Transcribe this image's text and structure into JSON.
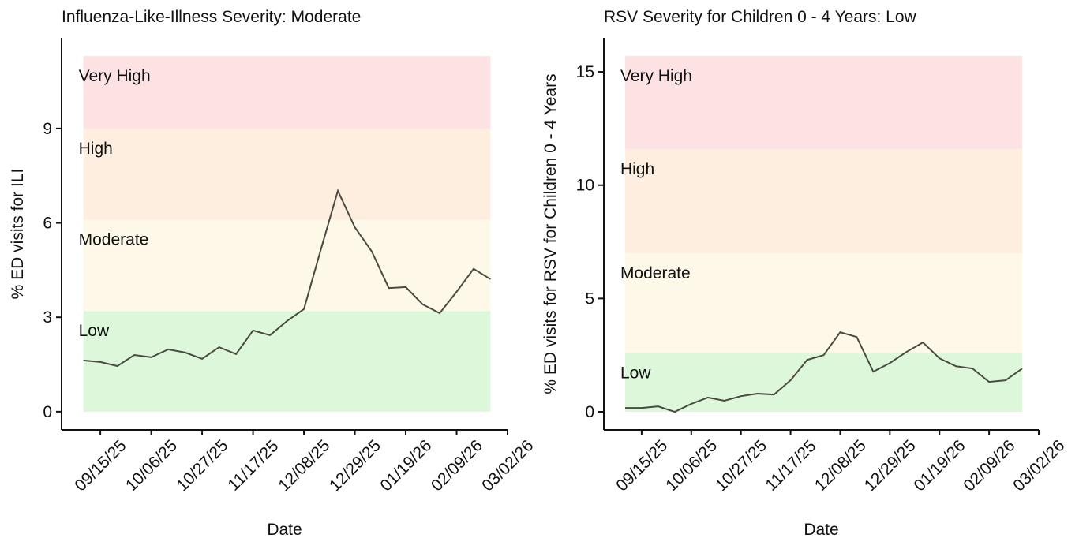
{
  "chart_data": [
    {
      "type": "line",
      "title": "Influenza-Like-Illness Severity: Moderate",
      "x_label": "Date",
      "y_label": "% ED visits for ILI",
      "x": [
        "2025-09-08",
        "2025-09-15",
        "2025-09-22",
        "2025-09-29",
        "2025-10-06",
        "2025-10-13",
        "2025-10-20",
        "2025-10-27",
        "2025-11-03",
        "2025-11-10",
        "2025-11-17",
        "2025-11-24",
        "2025-12-01",
        "2025-12-08",
        "2025-12-15",
        "2025-12-22",
        "2025-12-29",
        "2026-01-05",
        "2026-01-12",
        "2026-01-19",
        "2026-01-26",
        "2026-02-02",
        "2026-02-09",
        "2026-02-16",
        "2026-02-23"
      ],
      "series": [
        {
          "color": "#4a4a40",
          "values": [
            1.63,
            1.58,
            1.45,
            1.8,
            1.73,
            1.98,
            1.88,
            1.68,
            2.05,
            1.83,
            2.58,
            2.43,
            2.88,
            3.26,
            5.16,
            7.02,
            5.86,
            5.09,
            3.93,
            3.96,
            3.41,
            3.13,
            3.81,
            4.54,
            4.21
          ]
        }
      ],
      "bands": [
        {
          "name": "Low",
          "from": 0,
          "to": 3.2,
          "color": "#dcf7da"
        },
        {
          "name": "Moderate",
          "from": 3.2,
          "to": 6.1,
          "color": "#fdf8e8"
        },
        {
          "name": "High",
          "from": 6.1,
          "to": 9,
          "color": "#fdeee0"
        },
        {
          "name": "Very High",
          "from": 9,
          "to": 11.3,
          "color": "#fde2e4"
        }
      ],
      "xlim": [
        "2025-08-30",
        "2026-03-02"
      ],
      "xticks": [
        {
          "value": "2025-09-15",
          "label": "09/15/25"
        },
        {
          "value": "2025-10-06",
          "label": "10/06/25"
        },
        {
          "value": "2025-10-27",
          "label": "10/27/25"
        },
        {
          "value": "2025-11-17",
          "label": "11/17/25"
        },
        {
          "value": "2025-12-08",
          "label": "12/08/25"
        },
        {
          "value": "2025-12-29",
          "label": "12/29/25"
        },
        {
          "value": "2026-01-19",
          "label": "01/19/26"
        },
        {
          "value": "2026-02-09",
          "label": "02/09/26"
        },
        {
          "value": "2026-03-02",
          "label": "03/02/26"
        }
      ],
      "ylim": [
        -0.58,
        11.88
      ],
      "yticks": [
        0,
        3,
        6,
        9
      ]
    },
    {
      "type": "line",
      "title": "RSV Severity for Children 0 - 4 Years: Low",
      "x_label": "Date",
      "y_label": "% ED visits for RSV for Children 0 - 4 Years",
      "x": [
        "2025-09-08",
        "2025-09-15",
        "2025-09-22",
        "2025-09-29",
        "2025-10-06",
        "2025-10-13",
        "2025-10-20",
        "2025-10-27",
        "2025-11-03",
        "2025-11-10",
        "2025-11-17",
        "2025-11-24",
        "2025-12-01",
        "2025-12-08",
        "2025-12-15",
        "2025-12-22",
        "2025-12-29",
        "2026-01-05",
        "2026-01-12",
        "2026-01-19",
        "2026-01-26",
        "2026-02-02",
        "2026-02-09",
        "2026-02-16",
        "2026-02-23"
      ],
      "series": [
        {
          "color": "#4a4a40",
          "values": [
            0.17,
            0.17,
            0.24,
            0.0,
            0.35,
            0.63,
            0.49,
            0.69,
            0.8,
            0.76,
            1.39,
            2.29,
            2.5,
            3.51,
            3.3,
            1.77,
            2.15,
            2.64,
            3.06,
            2.36,
            2.01,
            1.91,
            1.32,
            1.39,
            1.91
          ]
        }
      ],
      "bands": [
        {
          "name": "Low",
          "from": 0,
          "to": 2.6,
          "color": "#dcf7da"
        },
        {
          "name": "Moderate",
          "from": 2.6,
          "to": 7.0,
          "color": "#fdf8e8"
        },
        {
          "name": "High",
          "from": 7.0,
          "to": 11.6,
          "color": "#fdeee0"
        },
        {
          "name": "Very High",
          "from": 11.6,
          "to": 15.7,
          "color": "#fde2e4"
        }
      ],
      "xlim": [
        "2025-08-30",
        "2026-03-02"
      ],
      "xticks": [
        {
          "value": "2025-09-15",
          "label": "09/15/25"
        },
        {
          "value": "2025-10-06",
          "label": "10/06/25"
        },
        {
          "value": "2025-10-27",
          "label": "10/27/25"
        },
        {
          "value": "2025-11-17",
          "label": "11/17/25"
        },
        {
          "value": "2025-12-08",
          "label": "12/08/25"
        },
        {
          "value": "2025-12-29",
          "label": "12/29/25"
        },
        {
          "value": "2026-01-19",
          "label": "01/19/26"
        },
        {
          "value": "2026-02-09",
          "label": "02/09/26"
        },
        {
          "value": "2026-03-02",
          "label": "03/02/26"
        }
      ],
      "ylim": [
        -0.8,
        16.5
      ],
      "yticks": [
        0,
        5,
        10,
        15
      ]
    }
  ]
}
